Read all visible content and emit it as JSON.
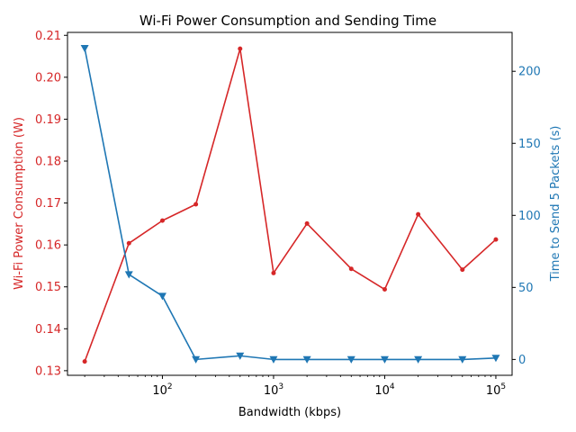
{
  "colors": {
    "left": "#d62728",
    "right": "#1f77b4",
    "axis": "#000000"
  },
  "chart_data": {
    "type": "line",
    "title": "Wi-Fi Power Consumption and Sending Time",
    "xlabel": "Bandwidth (kbps)",
    "x_scale": "log",
    "x": [
      20,
      50,
      100,
      200,
      500,
      1000,
      2000,
      5000,
      10000,
      20000,
      50000,
      100000
    ],
    "xlim": [
      14,
      140000
    ],
    "xticks": [
      {
        "value": 100,
        "base": "10",
        "exp": "2"
      },
      {
        "value": 1000,
        "base": "10",
        "exp": "3"
      },
      {
        "value": 10000,
        "base": "10",
        "exp": "4"
      },
      {
        "value": 100000,
        "base": "10",
        "exp": "5"
      }
    ],
    "left_axis": {
      "label": "Wi-Fi Power Consumption (W)",
      "ylim": [
        0.1289,
        0.2107
      ],
      "ticks": [
        "0.13",
        "0.14",
        "0.15",
        "0.16",
        "0.17",
        "0.18",
        "0.19",
        "0.20",
        "0.21"
      ]
    },
    "right_axis": {
      "label": "Time to Send 5 Packets (s)",
      "ylim": [
        -11,
        227
      ],
      "ticks": [
        "0",
        "50",
        "100",
        "150",
        "200"
      ]
    },
    "series": [
      {
        "axis": "left",
        "marker": "circle",
        "values": [
          0.1322,
          0.1604,
          0.1658,
          0.1697,
          0.2068,
          0.1533,
          0.1651,
          0.1543,
          0.1494,
          0.1673,
          0.1541,
          0.1613
        ]
      },
      {
        "axis": "right",
        "marker": "triangle-down",
        "values": [
          216,
          59,
          44,
          0,
          2.5,
          0,
          0,
          0,
          0,
          0,
          0,
          1
        ]
      }
    ]
  }
}
